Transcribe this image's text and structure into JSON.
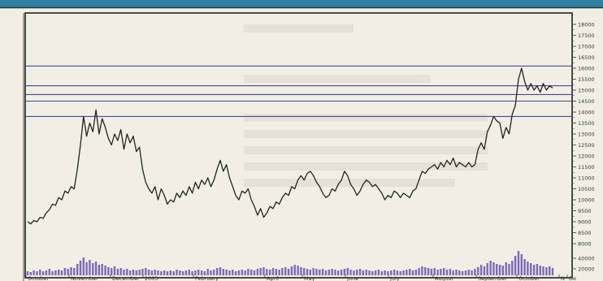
{
  "colors": {
    "top_strip": "#2f7fa2",
    "paper": "#f1eee5",
    "plot_bg": "#f4f2ea",
    "frame": "#222222",
    "price_line": "#232323",
    "h_lines": "#4b4790",
    "volume": "#7f69b6",
    "show_through": "#d7d2c6"
  },
  "chart_data": {
    "type": "line",
    "title": "",
    "xlabel": "",
    "ylabel": "",
    "x_axis_labels": [
      "October",
      "November",
      "December",
      "2003",
      "February",
      "April",
      "May",
      "June",
      "July",
      "August",
      "September",
      "October",
      "N",
      "De"
    ],
    "y_axis_labels": [
      "18000",
      "17500",
      "17000",
      "16500",
      "16000",
      "15500",
      "15000",
      "14500",
      "14000",
      "13500",
      "13000",
      "12500",
      "12000",
      "11500",
      "11000",
      "10500",
      "10000",
      "9500",
      "9000",
      "8500",
      "8000",
      "40000",
      "20000"
    ],
    "ylim": [
      8000,
      18000
    ],
    "horizontal_lines": [
      16100,
      15200,
      14800,
      14500,
      13800
    ],
    "series": [
      {
        "values": [
          9000,
          8900,
          9050,
          9000,
          9200,
          9150,
          9400,
          9550,
          9800,
          9750,
          10100,
          10000,
          10400,
          10300,
          10600,
          10500,
          11400,
          12500,
          13800,
          12900,
          13500,
          13100,
          14100,
          13000,
          13700,
          13300,
          12800,
          12500,
          13000,
          12700,
          13200,
          12300,
          13000,
          12600,
          12900,
          12200,
          12400,
          11400,
          10800,
          10500,
          10300,
          10600,
          10000,
          10500,
          10200,
          9800,
          10000,
          9900,
          10300,
          10100,
          10400,
          10200,
          10600,
          10300,
          10800,
          10500,
          10900,
          10700,
          11000,
          10600,
          10900,
          11400,
          11800,
          11300,
          11600,
          11000,
          10600,
          10200,
          10000,
          10400,
          10300,
          10500,
          10000,
          9700,
          9300,
          9600,
          9200,
          9400,
          9700,
          9600,
          9900,
          9800,
          10100,
          10300,
          10200,
          10600,
          10500,
          10900,
          11100,
          10900,
          11200,
          11300,
          11100,
          10800,
          10600,
          10300,
          10100,
          10200,
          10500,
          10400,
          10700,
          10900,
          11300,
          11100,
          10700,
          10500,
          10200,
          10400,
          10700,
          10900,
          10800,
          10600,
          10700,
          10500,
          10300,
          10000,
          10200,
          10100,
          10400,
          10300,
          10100,
          10300,
          10200,
          10100,
          10400,
          10500,
          10900,
          11300,
          11200,
          11400,
          11500,
          11600,
          11400,
          11700,
          11500,
          11800,
          11600,
          11900,
          11500,
          11700,
          11600,
          11500,
          11700,
          11500,
          11600,
          12300,
          12600,
          12300,
          13100,
          13400,
          13800,
          13600,
          13500,
          12800,
          13300,
          13000,
          13900,
          14300,
          15500,
          16000,
          15400,
          15000,
          15300,
          15000,
          15200,
          14900,
          15300,
          15000,
          15200,
          15100
        ]
      }
    ],
    "volume_series": [
      5,
      4,
      6,
      5,
      7,
      5,
      6,
      8,
      5,
      6,
      7,
      6,
      9,
      8,
      10,
      9,
      14,
      18,
      22,
      16,
      19,
      15,
      17,
      13,
      14,
      12,
      10,
      9,
      11,
      8,
      9,
      7,
      8,
      6,
      7,
      6,
      7,
      8,
      9,
      7,
      6,
      7,
      6,
      5,
      6,
      5,
      6,
      5,
      7,
      6,
      5,
      6,
      7,
      5,
      6,
      7,
      6,
      5,
      8,
      6,
      7,
      9,
      10,
      8,
      7,
      6,
      7,
      5,
      6,
      7,
      6,
      8,
      7,
      6,
      8,
      9,
      10,
      8,
      7,
      9,
      8,
      7,
      9,
      10,
      8,
      11,
      13,
      12,
      10,
      9,
      8,
      7,
      9,
      8,
      7,
      8,
      6,
      7,
      8,
      7,
      6,
      7,
      8,
      9,
      7,
      6,
      7,
      8,
      6,
      7,
      6,
      5,
      6,
      7,
      5,
      6,
      5,
      6,
      7,
      6,
      5,
      6,
      7,
      8,
      6,
      7,
      9,
      11,
      10,
      9,
      8,
      9,
      7,
      8,
      9,
      7,
      8,
      6,
      7,
      6,
      5,
      6,
      7,
      6,
      8,
      10,
      13,
      11,
      15,
      18,
      16,
      14,
      13,
      12,
      16,
      14,
      18,
      24,
      30,
      26,
      20,
      17,
      15,
      13,
      14,
      12,
      11,
      10,
      11,
      9
    ]
  }
}
